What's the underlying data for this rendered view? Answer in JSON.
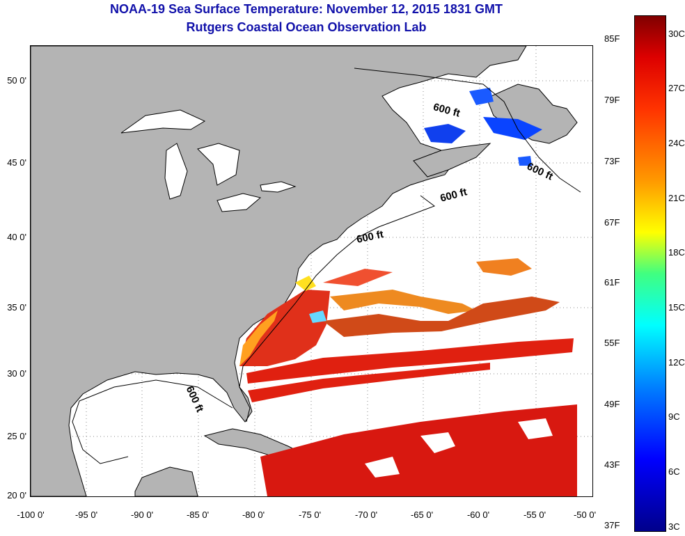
{
  "title_line1": "NOAA-19 Sea Surface Temperature:  November 12, 2015 1831 GMT",
  "title_line2": "Rutgers Coastal Ocean Observation Lab",
  "lat_labels": [
    "50 0'",
    "45 0'",
    "40 0'",
    "35 0'",
    "30 0'",
    "25 0'",
    "20 0'"
  ],
  "lon_labels": [
    "-100 0'",
    "-95 0'",
    "-90 0'",
    "-85 0'",
    "-80 0'",
    "-75 0'",
    "-70 0'",
    "-65 0'",
    "-60 0'",
    "-55 0'",
    "-50 0'"
  ],
  "colorbar": {
    "fahrenheit": [
      "85F",
      "79F",
      "73F",
      "67F",
      "61F",
      "55F",
      "49F",
      "43F",
      "37F"
    ],
    "celsius": [
      "30C",
      "27C",
      "24C",
      "21C",
      "18C",
      "15C",
      "12C",
      "9C",
      "6C",
      "3C"
    ]
  },
  "contour_labels": [
    "600 ft",
    "600 ft",
    "600 ft",
    "600 ft",
    "600 ft"
  ],
  "colors": {
    "land": "#b4b4b4",
    "title": "#1111aa",
    "warm_sst": "#dd1a10",
    "coastal_sst": "#ff8c00",
    "cold_sst": "#0033ee"
  }
}
